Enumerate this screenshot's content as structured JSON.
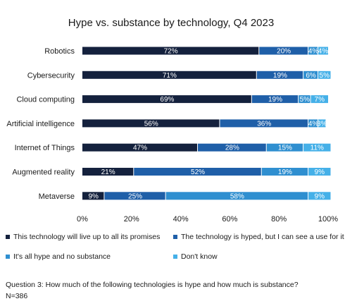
{
  "chart_data": {
    "type": "bar",
    "orientation": "horizontal",
    "stacked": true,
    "title": "Hype vs. substance by technology, Q4 2023",
    "categories": [
      "Robotics",
      "Cybersecurity",
      "Cloud computing",
      "Artificial intelligence",
      "Internet of Things",
      "Augmented reality",
      "Metaverse"
    ],
    "series": [
      {
        "name": "This technology will live up to all its promises",
        "color": "#14213d",
        "values": [
          72,
          71,
          69,
          56,
          47,
          21,
          9
        ]
      },
      {
        "name": "The technology is hyped, but I can see a use for it",
        "color": "#1f5fa8",
        "values": [
          20,
          19,
          19,
          36,
          28,
          52,
          25
        ]
      },
      {
        "name": "It's all hype and no substance",
        "color": "#2f8fd0",
        "values": [
          4,
          6,
          5,
          4,
          15,
          19,
          58
        ]
      },
      {
        "name": "Don't know",
        "color": "#45b0e8",
        "values": [
          4,
          5,
          7,
          3,
          11,
          9,
          9
        ]
      }
    ],
    "xlim": [
      0,
      100
    ],
    "x_ticks": [
      "0%",
      "20%",
      "40%",
      "60%",
      "80%",
      "100%"
    ],
    "grid": false,
    "legend_position": "bottom"
  },
  "footer": {
    "question": "Question 3: How much of the following technologies is hype and how much is substance?",
    "n": "N=386"
  }
}
